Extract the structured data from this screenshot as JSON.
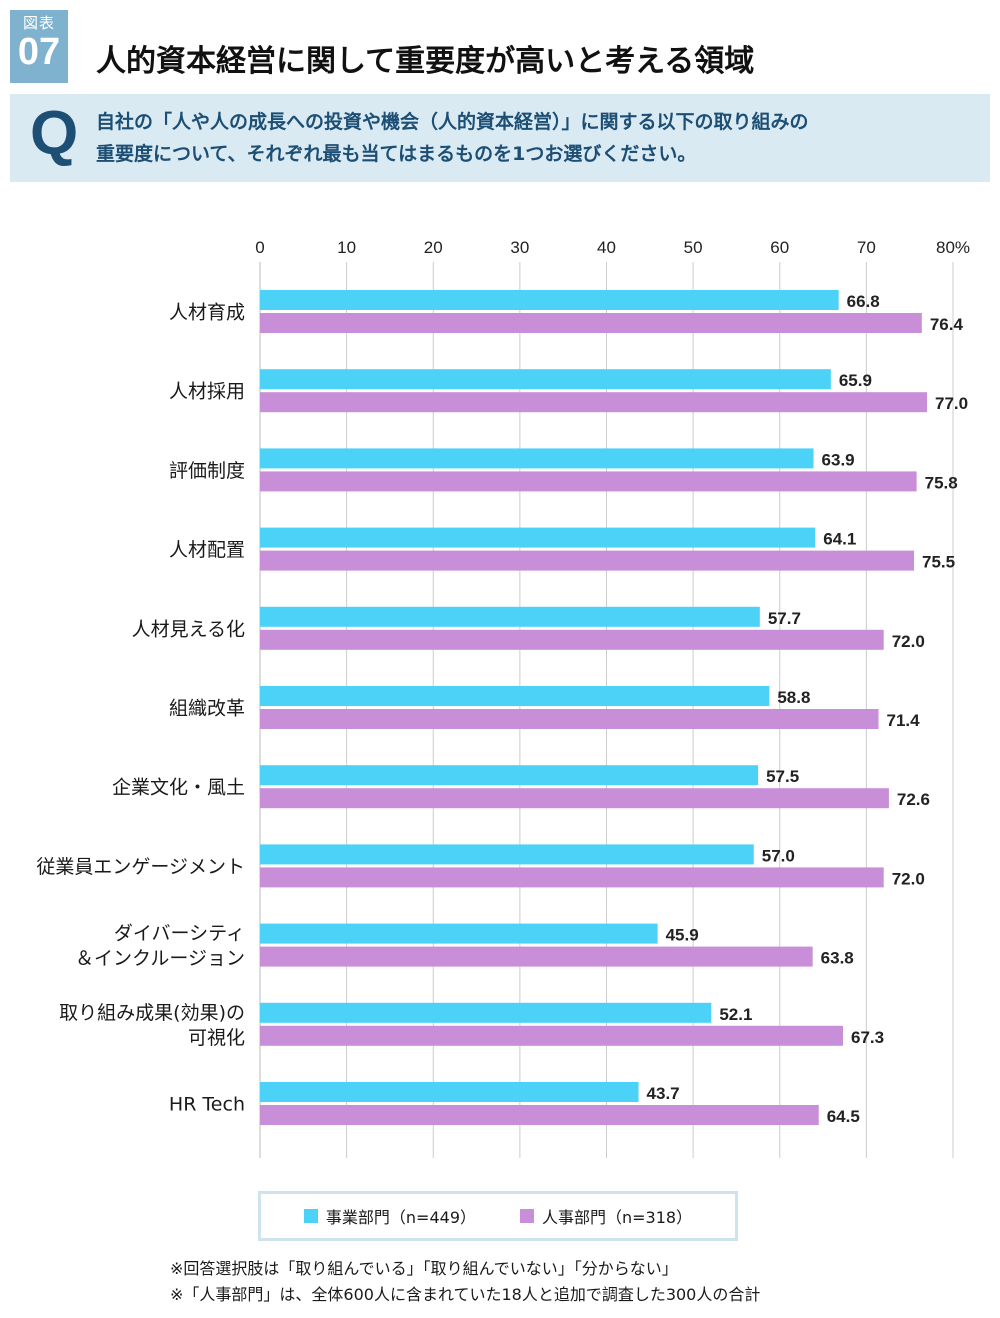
{
  "figure": {
    "label": "図表",
    "number": "07"
  },
  "title": "人的資本経営に関して重要度が高いと考える領域",
  "question": {
    "mark": "Q",
    "line1": "自社の「人や人の成長への投資や機会（人的資本経営）」に関する以下の取り組みの",
    "line2": "重要度について、それぞれ最も当てはまるものを1つお選びください。"
  },
  "colors": {
    "series1": "#4dd2f7",
    "series2": "#c98ed8",
    "grid": "#cccccc",
    "axis": "#bbbbbb"
  },
  "chart_data": {
    "type": "bar",
    "orientation": "horizontal",
    "xlim": [
      0,
      80
    ],
    "ticks": [
      "0",
      "10",
      "20",
      "30",
      "40",
      "50",
      "60",
      "70",
      "80"
    ],
    "tick_suffix": "%",
    "categories": [
      [
        "人材育成"
      ],
      [
        "人材採用"
      ],
      [
        "評価制度"
      ],
      [
        "人材配置"
      ],
      [
        "人材見える化"
      ],
      [
        "組織改革"
      ],
      [
        "企業文化・風土"
      ],
      [
        "従業員エンゲージメント"
      ],
      [
        "ダイバーシティ",
        "＆インクルージョン"
      ],
      [
        "取り組み成果(効果)の",
        "可視化"
      ],
      [
        "HR Tech"
      ]
    ],
    "series": [
      {
        "name": "事業部門（n=449）",
        "values": [
          "66.8",
          "65.9",
          "63.9",
          "64.1",
          "57.7",
          "58.8",
          "57.5",
          "57.0",
          "45.9",
          "52.1",
          "43.7"
        ]
      },
      {
        "name": "人事部門（n=318）",
        "values": [
          "76.4",
          "77.0",
          "75.8",
          "75.5",
          "72.0",
          "71.4",
          "72.6",
          "72.0",
          "63.8",
          "67.3",
          "64.5"
        ]
      }
    ]
  },
  "notes": [
    "※回答選択肢は「取り組んでいる」「取り組んでいない」「分からない」",
    "※「人事部門」は、全体600人に含まれていた18人と追加で調査した300人の合計"
  ]
}
